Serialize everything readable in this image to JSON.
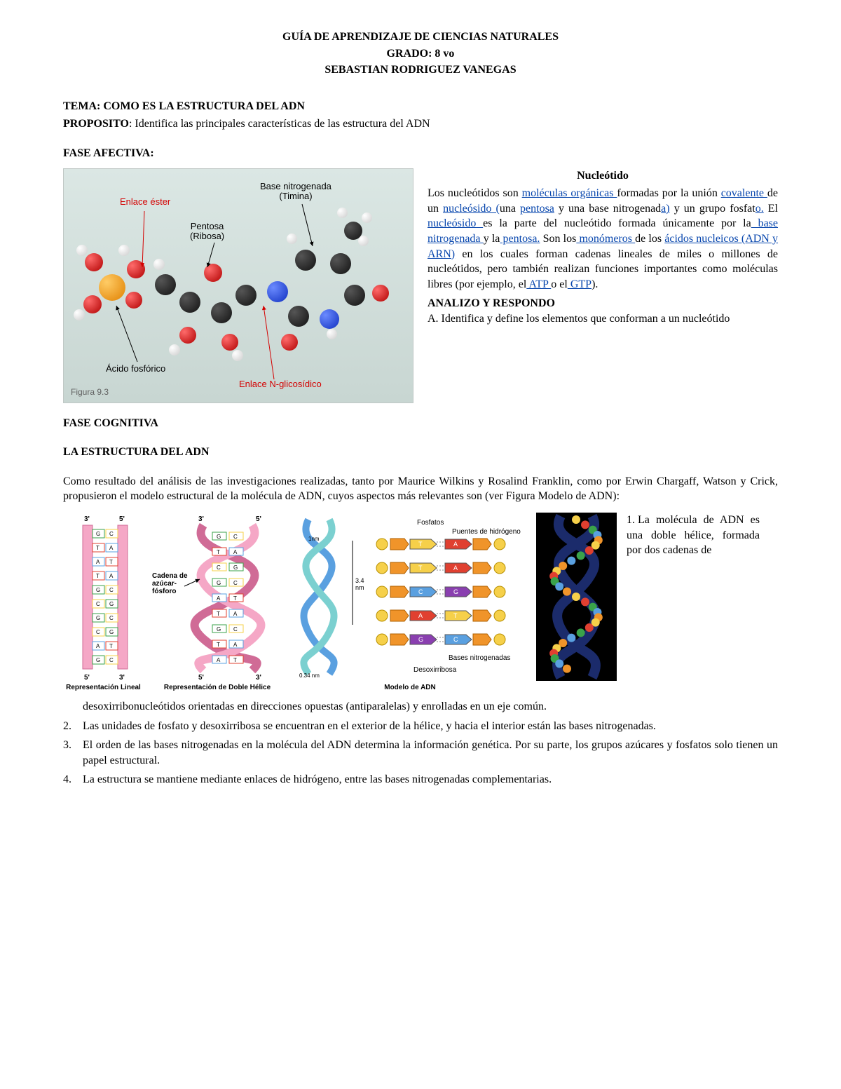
{
  "header": {
    "line1": "GUÍA DE APRENDIZAJE DE CIENCIAS NATURALES",
    "line2": "GRADO: 8 vo",
    "line3": "SEBASTIAN RODRIGUEZ VANEGAS"
  },
  "tema_label": "TEMA: ",
  "tema_text": "COMO ES LA ESTRUCTURA DEL ADN",
  "proposito_label": "PROPOSITO",
  "proposito_text": ": Identifica las principales características de las estructura del ADN",
  "fase_afectiva": "FASE AFECTIVA:",
  "molecule": {
    "labels": {
      "enlace_ester": "Enlace éster",
      "base_nitro": "Base nitrogenada",
      "timina": "(Timina)",
      "pentosa": "Pentosa",
      "ribosa": "(Ribosa)",
      "acido": "Ácido fosfórico",
      "enlace_ng": "Enlace N-glicosídico"
    },
    "figure_caption": "Figura 9.3",
    "colors": {
      "bg_top": "#dbe7e4",
      "bg_bot": "#c8d6d2",
      "carbon": "#222222",
      "oxygen": "#cc0000",
      "nitrogen": "#2040d0",
      "phosphorus": "#ee9900",
      "hydrogen": "#e8e8e8",
      "label_red": "#d40000"
    }
  },
  "nucleotido": {
    "title": "Nucleótido",
    "t1": "Los nucleótidos son ",
    "l1": "moléculas orgánicas ",
    "t2": "formadas por la unión ",
    "l2": "covalente ",
    "t3": "de un ",
    "l3": "nucleósido (",
    "t4": "una ",
    "l4": "pentosa",
    "t5": " y una base nitrogenad",
    "l5": "a)",
    "t6": " y un grupo fosfat",
    "l6": "o.",
    "t7": " El ",
    "l7": "nucleósido ",
    "t8": "es la parte del nucleótido formada únicamente por la",
    "l8": " base nitrogenada ",
    "t9": "y la",
    "l9": " pentosa.",
    "t10": " Son los",
    "l10": " monómeros ",
    "t11": "de los ",
    "l11": "ácidos nucleicos (ADN y ARN)",
    "t12": " en los cuales forman cadenas lineales de miles o millones de nucleótidos, pero también realizan funciones importantes como moléculas libres (por ejemplo, el",
    "l12": " ATP ",
    "t13": "o el",
    "l13": " GTP",
    "t14": ").",
    "analizo": "ANALIZO Y RESPONDO",
    "qA": "A. Identifica y define los elementos que conforman a un nucleótido"
  },
  "fase_cognitiva": "FASE COGNITIVA",
  "adn_title": "LA ESTRUCTURA DEL ADN",
  "adn_intro": "Como resultado del análisis de las investigaciones realizadas, tanto por Maurice Wilkins y Rosalind Franklin, como por Erwin Chargaff, Watson y Crick, propusieron el modelo estructural de la molécula de ADN, cuyos aspectos más relevantes son (ver Figura Modelo de ADN):",
  "dna_panels": {
    "p1_caption": "Representación Lineal",
    "p2_caption": "Representación de Doble Hélice",
    "p2_label": "Cadena de azúcar-fósforo",
    "p3_caption": "Modelo de ADN",
    "p3_labels": {
      "fosfatos": "Fosfatos",
      "puentes": "Puentes de hidrógeno",
      "bases": "Bases nitrogenadas",
      "desox": "Desoxirribosa",
      "h34": "3.4 nm",
      "w1": "1nm",
      "w034": "0.34 nm"
    },
    "ends": {
      "three": "3'",
      "five": "5'"
    },
    "bases": {
      "G": "G",
      "C": "C",
      "A": "A",
      "T": "T"
    },
    "colors": {
      "pink": "#f5a7c6",
      "pink_dark": "#d06b96",
      "blue": "#5aa0e0",
      "teal": "#7bd0d0",
      "yellow": "#f6d04a",
      "orange": "#f0942a",
      "green": "#3aa24a",
      "red": "#e04030",
      "navy": "#1b2b6b",
      "gray": "#888888"
    }
  },
  "point1": "La molécula de ADN es una doble hélice, formada por dos cadenas de",
  "points_cont": {
    "p1b": "desoxirribonucleótidos orientadas    en direcciones   opuestas (antiparalelas)             y enrolladas en un eje común.",
    "p2": "Las unidades de fosfato y desoxirribosa se encuentran en el exterior de la hélice, y hacia el interior están las bases nitrogenadas.",
    "p3": "El orden de las bases nitrogenadas en la molécula del ADN determina la información genética. Por su parte, los grupos azúcares y fosfatos solo tienen un papel estructural.",
    "p4": "La estructura se mantiene mediante enlaces de hidrógeno, entre las bases nitrogenadas complementarias."
  }
}
